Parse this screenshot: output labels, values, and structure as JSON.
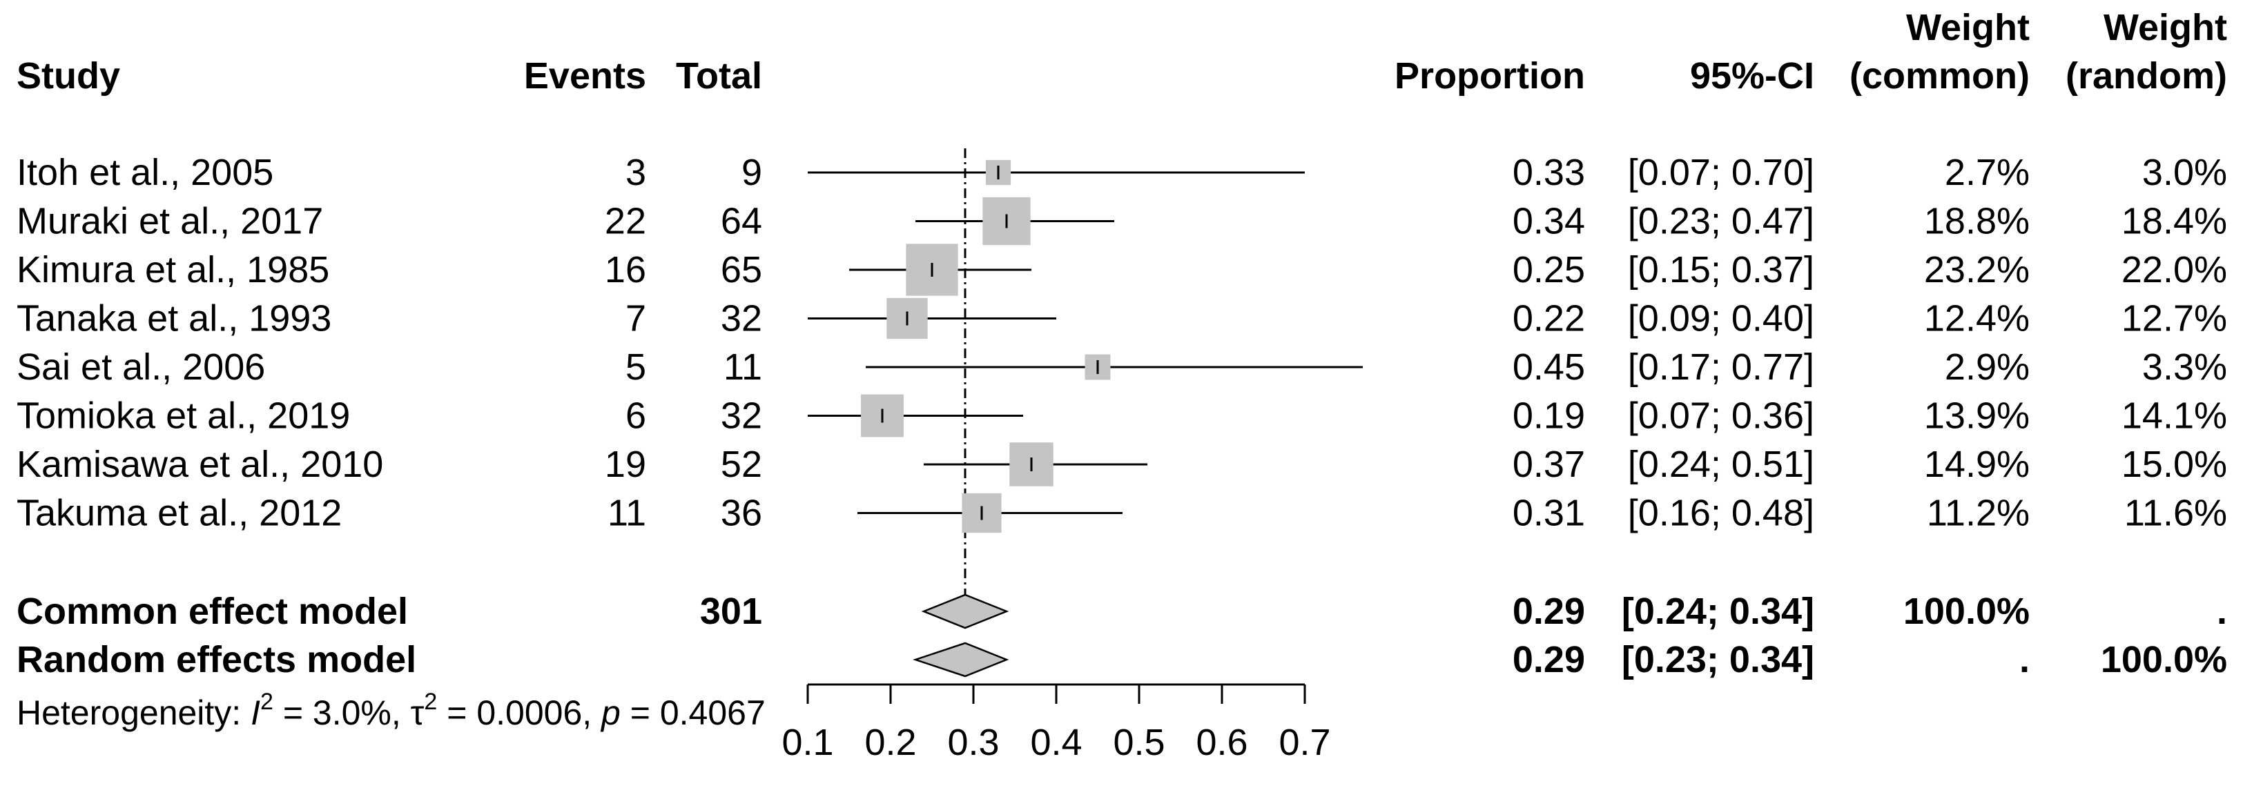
{
  "chart_data": {
    "type": "forest",
    "headers": {
      "study": "Study",
      "events": "Events",
      "total": "Total",
      "proportion": "Proportion",
      "ci": "95%-CI",
      "weight_common": [
        "Weight",
        "(common)"
      ],
      "weight_random": [
        "Weight",
        "(random)"
      ]
    },
    "studies": [
      {
        "name": "Itoh et al., 2005",
        "events": "3",
        "total": "9",
        "prop": 0.33,
        "lower": 0.07,
        "upper": 0.7,
        "prop_txt": "0.33",
        "ci_txt": "[0.07; 0.70]",
        "w_common": "2.7%",
        "w_random": "3.0%",
        "w_val": 2.7
      },
      {
        "name": "Muraki et al., 2017",
        "events": "22",
        "total": "64",
        "prop": 0.34,
        "lower": 0.23,
        "upper": 0.47,
        "prop_txt": "0.34",
        "ci_txt": "[0.23; 0.47]",
        "w_common": "18.8%",
        "w_random": "18.4%",
        "w_val": 18.8
      },
      {
        "name": "Kimura et al., 1985",
        "events": "16",
        "total": "65",
        "prop": 0.25,
        "lower": 0.15,
        "upper": 0.37,
        "prop_txt": "0.25",
        "ci_txt": "[0.15; 0.37]",
        "w_common": "23.2%",
        "w_random": "22.0%",
        "w_val": 23.2
      },
      {
        "name": "Tanaka et al., 1993",
        "events": "7",
        "total": "32",
        "prop": 0.22,
        "lower": 0.09,
        "upper": 0.4,
        "prop_txt": "0.22",
        "ci_txt": "[0.09; 0.40]",
        "w_common": "12.4%",
        "w_random": "12.7%",
        "w_val": 12.4
      },
      {
        "name": "Sai et al., 2006",
        "events": "5",
        "total": "11",
        "prop": 0.45,
        "lower": 0.17,
        "upper": 0.77,
        "prop_txt": "0.45",
        "ci_txt": "[0.17; 0.77]",
        "w_common": "2.9%",
        "w_random": "3.3%",
        "w_val": 2.9
      },
      {
        "name": "Tomioka et al., 2019",
        "events": "6",
        "total": "32",
        "prop": 0.19,
        "lower": 0.07,
        "upper": 0.36,
        "prop_txt": "0.19",
        "ci_txt": "[0.07; 0.36]",
        "w_common": "13.9%",
        "w_random": "14.1%",
        "w_val": 13.9
      },
      {
        "name": "Kamisawa et al., 2010",
        "events": "19",
        "total": "52",
        "prop": 0.37,
        "lower": 0.24,
        "upper": 0.51,
        "prop_txt": "0.37",
        "ci_txt": "[0.24; 0.51]",
        "w_common": "14.9%",
        "w_random": "15.0%",
        "w_val": 14.9
      },
      {
        "name": "Takuma et al., 2012",
        "events": "11",
        "total": "36",
        "prop": 0.31,
        "lower": 0.16,
        "upper": 0.48,
        "prop_txt": "0.31",
        "ci_txt": "[0.16; 0.48]",
        "w_common": "11.2%",
        "w_random": "11.6%",
        "w_val": 11.2
      }
    ],
    "pooled": [
      {
        "name": "Common effect model",
        "total": "301",
        "est": 0.29,
        "lower": 0.24,
        "upper": 0.34,
        "prop_txt": "0.29",
        "ci_txt": "[0.24; 0.34]",
        "w_common": "100.0%",
        "w_random": "."
      },
      {
        "name": "Random effects model",
        "total": "",
        "est": 0.29,
        "lower": 0.23,
        "upper": 0.34,
        "prop_txt": "0.29",
        "ci_txt": "[0.23; 0.34]",
        "w_common": ".",
        "w_random": "100.0%"
      }
    ],
    "heterogeneity": {
      "prefix": "Heterogeneity: ",
      "i2_symbol": "I",
      "i2_value": " = 3.0%, ",
      "tau_symbol": "τ",
      "tau_value": " = 0.0006, ",
      "p_symbol": "p",
      "p_value": " = 0.4067",
      "sup": "2"
    },
    "x_axis": {
      "range": [
        0.1,
        0.7
      ],
      "ticks": [
        0.1,
        0.2,
        0.3,
        0.4,
        0.5,
        0.6,
        0.7
      ],
      "tick_labels": [
        "0.1",
        "0.2",
        "0.3",
        "0.4",
        "0.5",
        "0.6",
        "0.7"
      ]
    },
    "reference_line": 0.29
  }
}
